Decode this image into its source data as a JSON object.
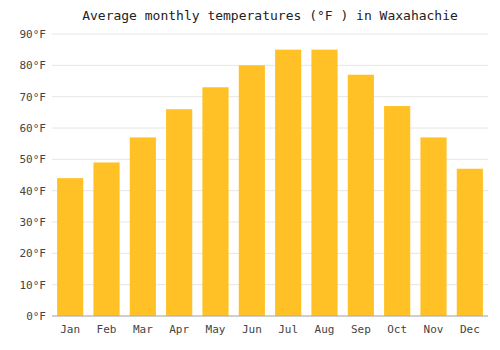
{
  "chart_data": {
    "type": "bar",
    "title": "Average monthly temperatures (°F ) in Waxahachie",
    "categories": [
      "Jan",
      "Feb",
      "Mar",
      "Apr",
      "May",
      "Jun",
      "Jul",
      "Aug",
      "Sep",
      "Oct",
      "Nov",
      "Dec"
    ],
    "values": [
      44,
      49,
      57,
      66,
      73,
      80,
      85,
      85,
      77,
      67,
      57,
      47
    ],
    "color": "#FFC125",
    "ylim": [
      0,
      90
    ],
    "yticks": [
      {
        "value": 0,
        "label": "0°F"
      },
      {
        "value": 10,
        "label": "10°F"
      },
      {
        "value": 20,
        "label": "20°F"
      },
      {
        "value": 30,
        "label": "30°F"
      },
      {
        "value": 40,
        "label": "40°F"
      },
      {
        "value": 50,
        "label": "50°F"
      },
      {
        "value": 60,
        "label": "60°F"
      },
      {
        "value": 70,
        "label": "70°F"
      },
      {
        "value": 80,
        "label": "80°F"
      },
      {
        "value": 90,
        "label": "90°F"
      }
    ],
    "grid": true
  }
}
